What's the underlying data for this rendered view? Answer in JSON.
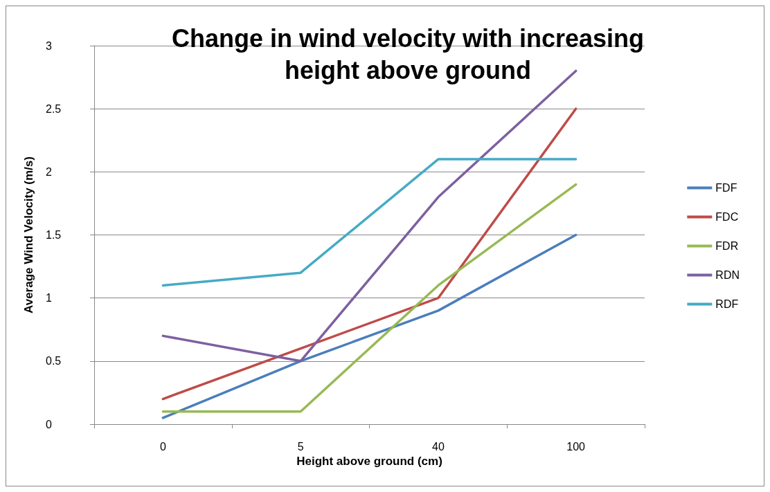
{
  "chart_data": {
    "type": "line",
    "title": "Change in wind velocity with increasing\nheight above ground",
    "xlabel": "Height above ground (cm)",
    "ylabel": "Average Wind Velocity (m/s)",
    "categories": [
      "0",
      "5",
      "40",
      "100"
    ],
    "series": [
      {
        "name": "FDF",
        "color": "#4a7ebb",
        "values": [
          0.05,
          0.5,
          0.9,
          1.5
        ]
      },
      {
        "name": "FDC",
        "color": "#be4b48",
        "values": [
          0.2,
          0.6,
          1.0,
          2.5
        ]
      },
      {
        "name": "FDR",
        "color": "#98b954",
        "values": [
          0.1,
          0.1,
          1.1,
          1.9
        ]
      },
      {
        "name": "RDN",
        "color": "#7d60a0",
        "values": [
          0.7,
          0.5,
          1.8,
          2.8
        ]
      },
      {
        "name": "RDF",
        "color": "#46aac5",
        "values": [
          1.1,
          1.2,
          2.1,
          2.1
        ]
      }
    ],
    "ylim": [
      0,
      3
    ],
    "yticks": [
      0,
      0.5,
      1,
      1.5,
      2,
      2.5,
      3
    ],
    "grid": "y",
    "legend": "right",
    "marker": "none",
    "line_style": "solid"
  }
}
